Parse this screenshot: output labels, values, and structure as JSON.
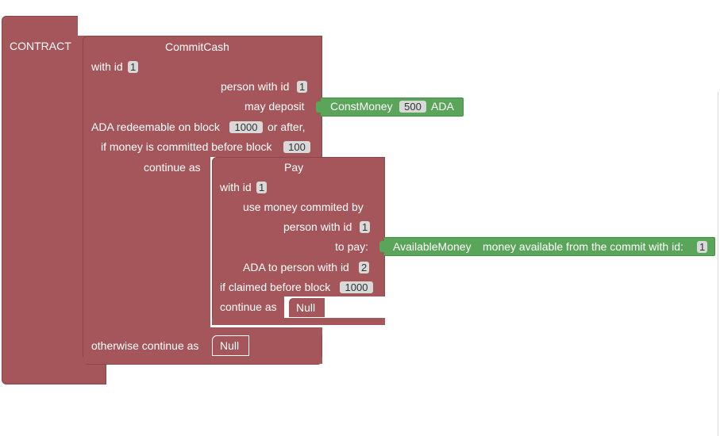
{
  "contract": {
    "label": "CONTRACT"
  },
  "commit": {
    "title": "CommitCash",
    "with_id": "with id",
    "id_value": "1",
    "person_label": "person with id",
    "person_value": "1",
    "may_deposit": "may deposit",
    "redeem_label": "ADA redeemable on block",
    "redeem_block": "1000",
    "or_after": "or after,",
    "before_label": "if money is committed before block",
    "before_block": "100",
    "continue_as": "continue as",
    "otherwise": "otherwise continue as",
    "otherwise_value": "Null"
  },
  "const_money": {
    "name": "ConstMoney",
    "value": "500",
    "unit": "ADA"
  },
  "pay": {
    "title": "Pay",
    "with_id": "with id",
    "id_value": "1",
    "use_money": "use money commited by",
    "person_label": "person with id",
    "person_value": "1",
    "to_pay": "to pay:",
    "ada_to": "ADA to person with id",
    "ada_to_value": "2",
    "claimed_label": "if claimed before block",
    "claimed_block": "1000",
    "continue_as": "continue as",
    "continue_value": "Null"
  },
  "available_money": {
    "name": "AvailableMoney",
    "description": "money available from the commit with id:",
    "value": "1"
  },
  "colors": {
    "block": "#a5565a",
    "value_block": "#5ba55b",
    "field": "#d9d9d9"
  }
}
